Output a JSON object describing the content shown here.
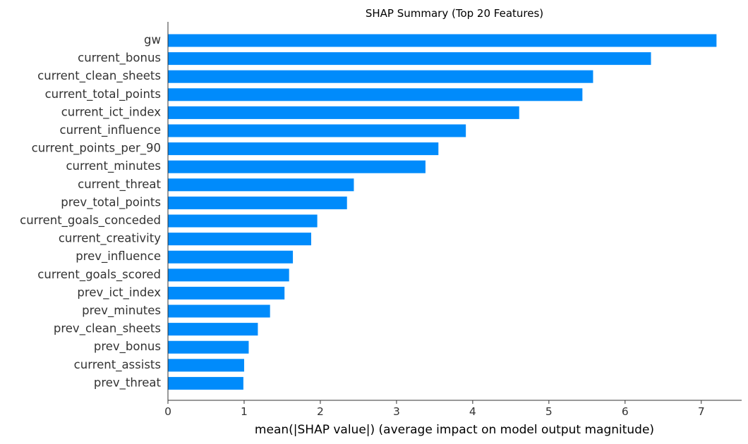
{
  "chart_data": {
    "type": "bar",
    "orientation": "horizontal",
    "title": "SHAP Summary (Top 20 Features)",
    "xlabel": "mean(|SHAP value|) (average impact on model output magnitude)",
    "ylabel": "",
    "categories": [
      "gw",
      "current_bonus",
      "current_clean_sheets",
      "current_total_points",
      "current_ict_index",
      "current_influence",
      "current_points_per_90",
      "current_minutes",
      "current_threat",
      "prev_total_points",
      "current_goals_conceded",
      "current_creativity",
      "prev_influence",
      "current_goals_scored",
      "prev_ict_index",
      "prev_minutes",
      "prev_clean_sheets",
      "prev_bonus",
      "current_assists",
      "prev_threat"
    ],
    "values": [
      7.2,
      6.34,
      5.58,
      5.44,
      4.61,
      3.91,
      3.55,
      3.38,
      2.44,
      2.35,
      1.96,
      1.88,
      1.64,
      1.59,
      1.53,
      1.34,
      1.18,
      1.06,
      1.0,
      0.99
    ],
    "xlim": [
      0,
      7.53
    ],
    "xticks": [
      0,
      1,
      2,
      3,
      4,
      5,
      6,
      7
    ],
    "tick_labels": [
      "0",
      "1",
      "2",
      "3",
      "4",
      "5",
      "6",
      "7"
    ],
    "grid": false,
    "legend": "none",
    "bar_color": "#008bfb",
    "axis_color": "#333333"
  }
}
